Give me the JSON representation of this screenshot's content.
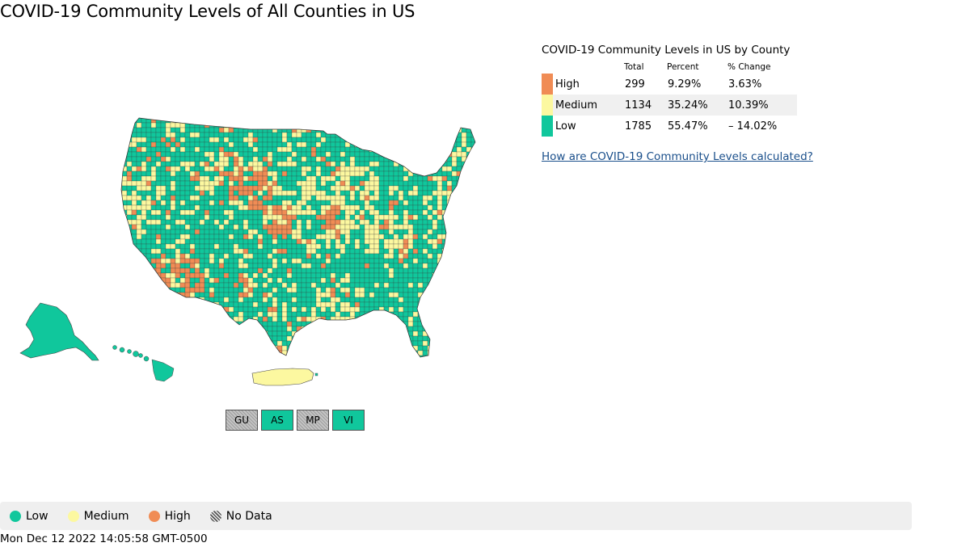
{
  "title": "COVID-19 Community Levels of All Counties in US",
  "colors": {
    "high": "#f08c55",
    "medium": "#fcf8a0",
    "low": "#10c79c",
    "no_data": "#b0b0b0",
    "link": "#1a4f8b",
    "legend_background": "#efefef"
  },
  "summary": {
    "title": "COVID-19 Community Levels in US by County",
    "headers": {
      "total": "Total",
      "percent": "Percent",
      "change": "% Change"
    },
    "rows": [
      {
        "level": "High",
        "total": "299",
        "percent": "9.29%",
        "change": "3.63%",
        "color": "#f08c55"
      },
      {
        "level": "Medium",
        "total": "1134",
        "percent": "35.24%",
        "change": "10.39%",
        "color": "#fcf8a0"
      },
      {
        "level": "Low",
        "total": "1785",
        "percent": "55.47%",
        "change": "– 14.02%",
        "color": "#10c79c"
      }
    ],
    "link_text": "How are COVID-19 Community Levels calculated?"
  },
  "map": {
    "regions": [
      {
        "name": "contiguous-us",
        "level": "low"
      },
      {
        "name": "alaska",
        "level": "low"
      },
      {
        "name": "hawaii",
        "level": "low"
      },
      {
        "name": "puerto-rico",
        "level": "medium"
      }
    ]
  },
  "territories": [
    {
      "label": "GU",
      "level": "no_data"
    },
    {
      "label": "AS",
      "level": "low"
    },
    {
      "label": "MP",
      "level": "no_data"
    },
    {
      "label": "VI",
      "level": "low"
    }
  ],
  "legend": {
    "low": "Low",
    "medium": "Medium",
    "high": "High",
    "no_data": "No Data"
  },
  "timestamp": "Mon Dec 12 2022 14:05:58 GMT-0500"
}
